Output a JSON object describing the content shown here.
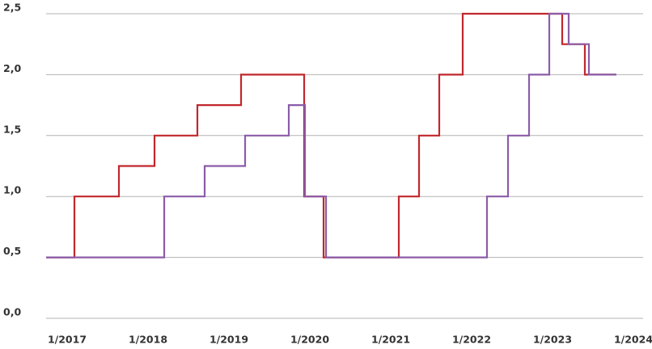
{
  "chart_data": {
    "type": "line",
    "step": "post",
    "xlim": [
      2016.74,
      2024.12
    ],
    "xticks": [
      {
        "value": 2017,
        "label": "1/2017"
      },
      {
        "value": 2018,
        "label": "1/2018"
      },
      {
        "value": 2019,
        "label": "1/2019"
      },
      {
        "value": 2020,
        "label": "1/2020"
      },
      {
        "value": 2021,
        "label": "1/2021"
      },
      {
        "value": 2022,
        "label": "1/2022"
      },
      {
        "value": 2023,
        "label": "1/2023"
      },
      {
        "value": 2024,
        "label": "1/2024"
      }
    ],
    "ylim": [
      0,
      2.5
    ],
    "yticks": [
      {
        "value": 0,
        "label": "0,0"
      },
      {
        "value": 0.5,
        "label": "0,5"
      },
      {
        "value": 1,
        "label": "1,0"
      },
      {
        "value": 1.5,
        "label": "1,5"
      },
      {
        "value": 2,
        "label": "2,0"
      },
      {
        "value": 2.5,
        "label": "2,5"
      }
    ],
    "grid": true,
    "series": [
      {
        "color": "#c1272d",
        "x": [
          2016.74,
          2017.09,
          2017.64,
          2018.08,
          2018.61,
          2019.15,
          2019.93,
          2020.17,
          2021.1,
          2021.35,
          2021.6,
          2021.89,
          2023.12,
          2023.4,
          2023.79
        ],
        "values": [
          0.5,
          1,
          1.25,
          1.5,
          1.75,
          2,
          1,
          0.5,
          1,
          1.5,
          2,
          2.5,
          2.25,
          2,
          2
        ]
      },
      {
        "color": "#8b5ca8",
        "x": [
          2016.74,
          2018.2,
          2018.7,
          2019.2,
          2019.74,
          2019.94,
          2020.2,
          2022.19,
          2022.45,
          2022.71,
          2022.96,
          2023.2,
          2023.45,
          2023.79
        ],
        "values": [
          0.5,
          1,
          1.25,
          1.5,
          1.75,
          1,
          0.5,
          1,
          1.5,
          2,
          2.5,
          2.25,
          2,
          2
        ]
      }
    ]
  }
}
